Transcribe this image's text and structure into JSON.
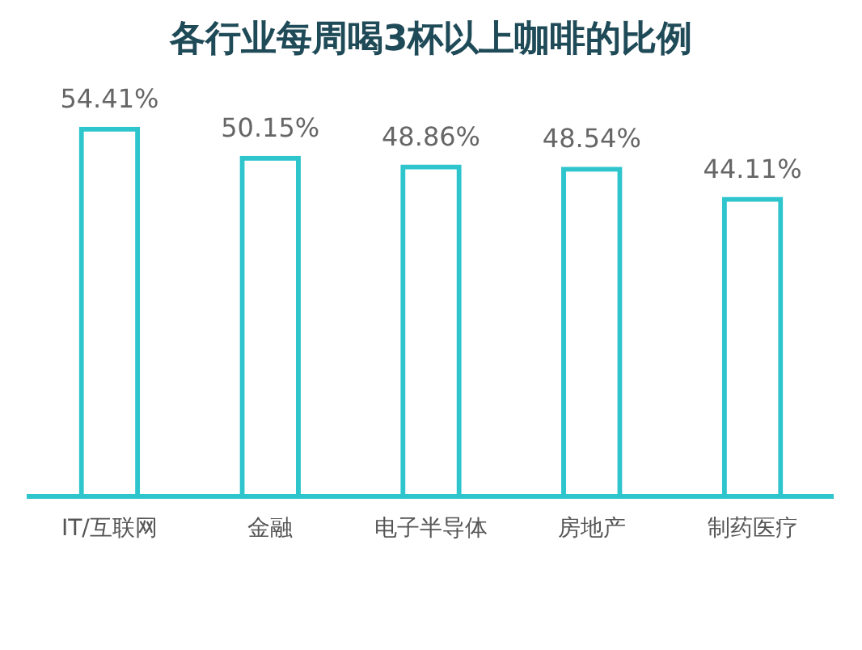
{
  "chart_data": {
    "type": "bar",
    "title": "各行业每周喝3杯以上咖啡的比例",
    "categories": [
      "IT/互联网",
      "金融",
      "电子半导体",
      "房地产",
      "制药医疗"
    ],
    "values": [
      54.41,
      50.15,
      48.86,
      48.54,
      44.11
    ],
    "value_labels": [
      "54.41%",
      "50.15%",
      "48.86%",
      "48.54%",
      "44.11%"
    ],
    "color": "#2ec5cd",
    "grid": false,
    "legend": false
  }
}
